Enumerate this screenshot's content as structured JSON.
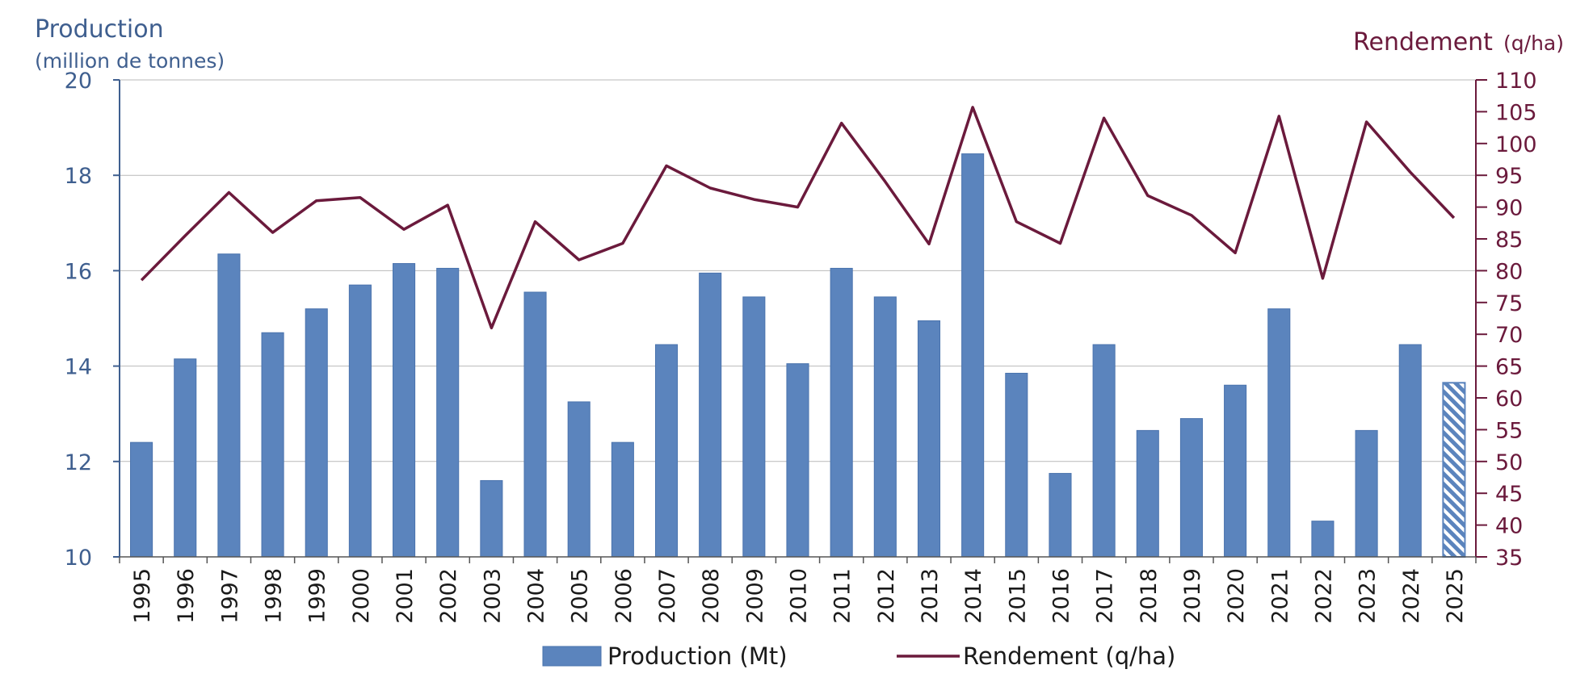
{
  "chart_data": {
    "type": "bar+line",
    "left_axis": {
      "label": "Production",
      "sublabel": "(million de tonnes)",
      "range": [
        10,
        20
      ],
      "ticks": [
        "10",
        "12",
        "14",
        "16",
        "18",
        "20"
      ],
      "color": "#3f5f8f"
    },
    "right_axis": {
      "label": "Rendement",
      "unit": "(q/ha)",
      "range": [
        35,
        110
      ],
      "ticks": [
        "35",
        "40",
        "45",
        "50",
        "55",
        "60",
        "65",
        "70",
        "75",
        "80",
        "85",
        "90",
        "95",
        "100",
        "105",
        "110"
      ],
      "color": "#6b1a3c"
    },
    "categories": [
      "1995",
      "1996",
      "1997",
      "1998",
      "1999",
      "2000",
      "2001",
      "2002",
      "2003",
      "2004",
      "2005",
      "2006",
      "2007",
      "2008",
      "2009",
      "2010",
      "2011",
      "2012",
      "2013",
      "2014",
      "2015",
      "2016",
      "2017",
      "2018",
      "2019",
      "2020",
      "2021",
      "2022",
      "2023",
      "2024",
      "2025"
    ],
    "series": [
      {
        "name": "Production (Mt)",
        "type": "bar",
        "axis": "left",
        "color": "#5b84bd",
        "values": [
          12.4,
          14.15,
          16.35,
          14.7,
          15.2,
          15.7,
          16.15,
          16.05,
          11.6,
          15.55,
          13.25,
          12.4,
          14.45,
          15.95,
          15.45,
          14.05,
          16.05,
          15.45,
          14.95,
          18.45,
          13.85,
          11.75,
          14.45,
          12.65,
          12.9,
          13.6,
          15.2,
          10.75,
          12.65,
          14.45,
          13.65
        ],
        "hatched_categories": [
          "2025"
        ]
      },
      {
        "name": "Rendement (q/ha)",
        "type": "line",
        "axis": "right",
        "color": "#6b1a3c",
        "values": [
          78.5,
          85.5,
          92.3,
          86.0,
          91.0,
          91.5,
          86.5,
          90.3,
          71.0,
          87.7,
          81.7,
          84.3,
          96.5,
          93.0,
          91.2,
          90.0,
          103.2,
          94.0,
          84.2,
          105.7,
          87.7,
          84.3,
          104.0,
          91.8,
          88.7,
          82.8,
          104.3,
          78.8,
          103.4,
          95.5,
          88.3
        ]
      }
    ],
    "grid": true,
    "legend_position": "bottom-center"
  }
}
